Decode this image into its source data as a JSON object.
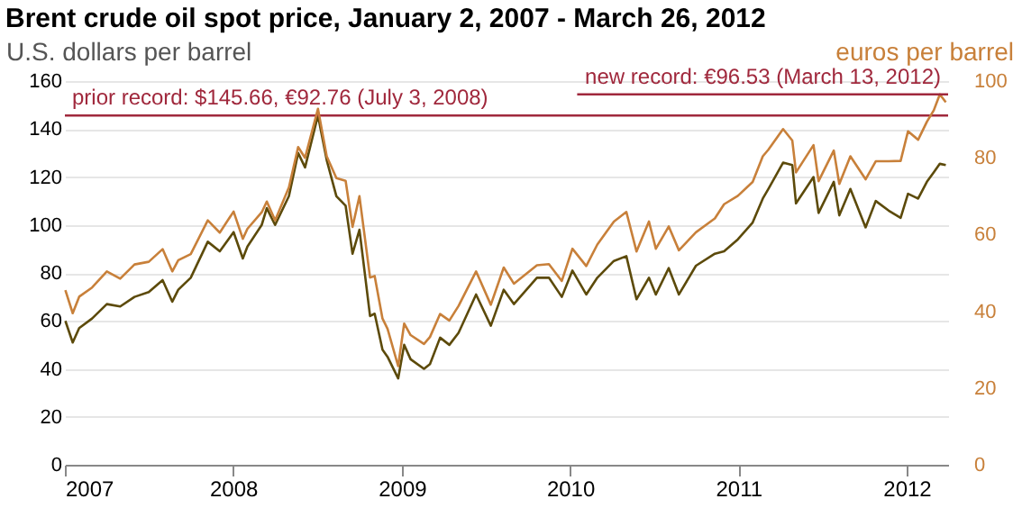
{
  "chart_data": {
    "type": "line",
    "title": "Brent crude oil spot price, January 2, 2007 - March 26, 2012",
    "ylabel": "U.S. dollars per barrel",
    "y2label": "euros per barrel",
    "x": [
      "2007-01-02",
      "2007-01-18",
      "2007-02-01",
      "2007-03-01",
      "2007-04-02",
      "2007-05-01",
      "2007-06-01",
      "2007-07-02",
      "2007-08-01",
      "2007-08-22",
      "2007-09-04",
      "2007-10-01",
      "2007-11-07",
      "2007-12-03",
      "2008-01-02",
      "2008-01-22",
      "2008-02-01",
      "2008-03-03",
      "2008-03-14",
      "2008-04-01",
      "2008-05-01",
      "2008-05-21",
      "2008-06-05",
      "2008-07-03",
      "2008-07-22",
      "2008-08-12",
      "2008-09-01",
      "2008-09-16",
      "2008-10-01",
      "2008-10-24",
      "2008-11-03",
      "2008-11-20",
      "2008-12-01",
      "2008-12-24",
      "2009-01-06",
      "2009-01-20",
      "2009-02-18",
      "2009-03-03",
      "2009-03-25",
      "2009-04-14",
      "2009-05-04",
      "2009-06-11",
      "2009-07-13",
      "2009-08-10",
      "2009-09-01",
      "2009-10-21",
      "2009-11-16",
      "2009-12-14",
      "2010-01-06",
      "2010-02-05",
      "2010-03-01",
      "2010-04-06",
      "2010-05-03",
      "2010-05-25",
      "2010-06-21",
      "2010-07-06",
      "2010-08-03",
      "2010-08-25",
      "2010-10-01",
      "2010-11-11",
      "2010-12-01",
      "2010-12-31",
      "2011-02-01",
      "2011-02-23",
      "2011-03-07",
      "2011-04-08",
      "2011-04-28",
      "2011-05-06",
      "2011-06-13",
      "2011-06-24",
      "2011-07-27",
      "2011-08-08",
      "2011-09-01",
      "2011-10-04",
      "2011-10-26",
      "2011-11-23",
      "2011-12-19",
      "2012-01-04",
      "2012-01-26",
      "2012-02-14",
      "2012-02-29",
      "2012-03-13",
      "2012-03-26"
    ],
    "series": [
      {
        "color": "#5c4a0a",
        "values": [
          60,
          51,
          57,
          61,
          67,
          66,
          70,
          72,
          77,
          68,
          73,
          78,
          93,
          89,
          97,
          86,
          91,
          100,
          107,
          100,
          112,
          130,
          124,
          145.66,
          127,
          112,
          108,
          88,
          98,
          62,
          63,
          48,
          45,
          36,
          50,
          44,
          40,
          42,
          53,
          50,
          55,
          71,
          58,
          73,
          67,
          78,
          78,
          70,
          81,
          71,
          78,
          85,
          87,
          69,
          78,
          71,
          82,
          71,
          83,
          88,
          89,
          94,
          101,
          111,
          115,
          126,
          125,
          109,
          120,
          105,
          118,
          104,
          115,
          99,
          110,
          106,
          103,
          113,
          111,
          118,
          122,
          125.5,
          125
        ]
      },
      {
        "color": "#c8803a",
        "axis": "y2",
        "values": [
          45.5,
          39.5,
          43.8,
          46.2,
          50.4,
          48.5,
          52.2,
          52.9,
          56.2,
          50.4,
          53.3,
          54.9,
          63.7,
          60.5,
          66.0,
          58.9,
          61.5,
          65.8,
          68.6,
          63.7,
          72.3,
          82.8,
          80.0,
          92.76,
          80.4,
          74.7,
          74.0,
          62.0,
          70.0,
          48.8,
          49.2,
          38.1,
          35.4,
          25.7,
          36.8,
          33.8,
          31.5,
          33.3,
          39.3,
          37.6,
          41.4,
          50.4,
          41.7,
          51.4,
          47.2,
          52.0,
          52.3,
          47.9,
          56.3,
          51.8,
          57.4,
          63.4,
          65.9,
          55.6,
          63.4,
          56.3,
          62.1,
          55.9,
          60.6,
          64.2,
          67.9,
          70.1,
          73.7,
          80.4,
          82.1,
          87.5,
          84.5,
          76.2,
          83.3,
          73.9,
          81.9,
          73.2,
          80.4,
          74.4,
          79.1,
          79.1,
          79.2,
          86.9,
          84.7,
          89.4,
          92.4,
          96.53,
          94.5
        ]
      }
    ],
    "xlim": [
      "2007-01-01",
      "2012-03-31"
    ],
    "xticks": [
      {
        "value": "2007-01-01",
        "label": "2007"
      },
      {
        "value": "2008-01-01",
        "label": "2008"
      },
      {
        "value": "2009-01-01",
        "label": "2009"
      },
      {
        "value": "2010-01-01",
        "label": "2010"
      },
      {
        "value": "2011-01-01",
        "label": "2011"
      },
      {
        "value": "2012-01-01",
        "label": "2012"
      }
    ],
    "ylim": [
      0,
      160
    ],
    "yticks": [
      0,
      20,
      40,
      60,
      80,
      100,
      120,
      140,
      160
    ],
    "y2lim": [
      0,
      100
    ],
    "y2ticks": [
      0,
      20,
      40,
      60,
      80,
      100
    ],
    "ref_lines": [
      {
        "axis": "y",
        "value": 145.66,
        "label": "prior record: $145.66, €92.76  (July 3, 2008)",
        "color": "#a0283c"
      },
      {
        "axis": "y2",
        "value": 96.53,
        "label": "new record: €96.53  (March 13, 2012)",
        "color": "#a0283c"
      }
    ],
    "grid": "y",
    "marker": "none",
    "line_style": "solid"
  }
}
